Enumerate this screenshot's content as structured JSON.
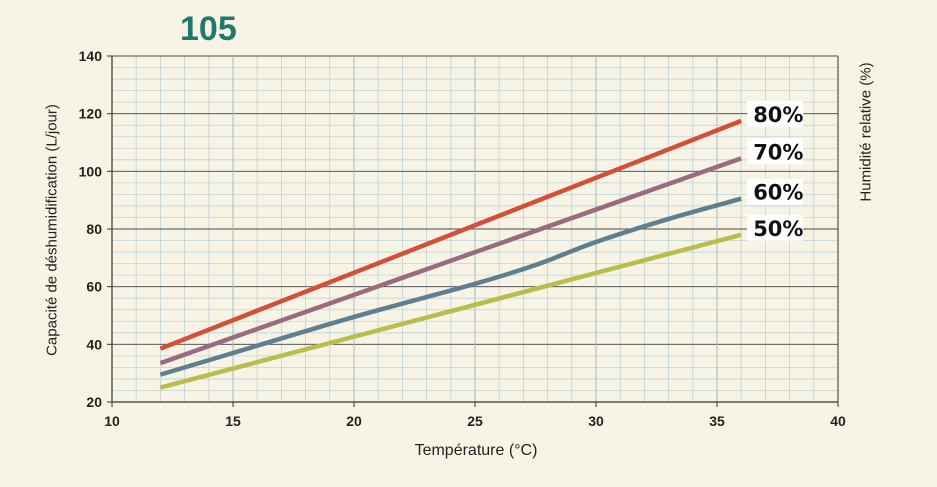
{
  "model_title": "105",
  "chart_data": {
    "type": "line",
    "title": "",
    "xlabel": "Température (°C)",
    "ylabel": "Capacité de déshumidification (L/jour)",
    "y2label": "Humidité relative (%)",
    "xlim": [
      10,
      40
    ],
    "ylim": [
      20,
      140
    ],
    "xticks": [
      10,
      15,
      20,
      25,
      30,
      35,
      40
    ],
    "yticks": [
      20,
      40,
      60,
      80,
      100,
      120,
      140
    ],
    "grid": true,
    "series": [
      {
        "name": "80%",
        "color": "#d24f38",
        "x": [
          12,
          36
        ],
        "y": [
          38.5,
          117.5
        ]
      },
      {
        "name": "70%",
        "color": "#9a6a7e",
        "x": [
          12,
          36
        ],
        "y": [
          33.5,
          104.5
        ]
      },
      {
        "name": "60%",
        "color": "#5d7f8e",
        "x": [
          12,
          15,
          20,
          25,
          27.5,
          30,
          33,
          36
        ],
        "y": [
          29.5,
          37,
          49.5,
          61,
          67.5,
          75.5,
          83.5,
          90.5
        ]
      },
      {
        "name": "50%",
        "color": "#b8bd4c",
        "x": [
          12,
          36
        ],
        "y": [
          25,
          78
        ]
      }
    ]
  }
}
